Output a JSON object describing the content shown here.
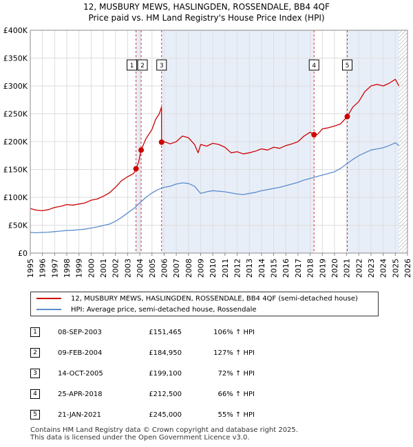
{
  "title_line1": "12, MUSBURY MEWS, HASLINGDEN, ROSSENDALE, BB4 4QF",
  "title_line2": "Price paid vs. HM Land Registry's House Price Index (HPI)",
  "colors": {
    "price_line": "#cc0000",
    "hpi_line": "#5b8ccc",
    "shade": "#e8eef8",
    "marker_line": "#cc0000",
    "grid": "#dddddd"
  },
  "chart_data": {
    "type": "line",
    "title": "Price paid vs. HM Land Registry's House Price Index (HPI)",
    "xlim": [
      1995,
      2026
    ],
    "ylim": [
      0,
      400000
    ],
    "x_ticks": [
      1995,
      1996,
      1997,
      1998,
      1999,
      2000,
      2001,
      2002,
      2003,
      2004,
      2005,
      2006,
      2007,
      2008,
      2009,
      2010,
      2011,
      2012,
      2013,
      2014,
      2015,
      2016,
      2017,
      2018,
      2019,
      2020,
      2021,
      2022,
      2023,
      2024,
      2025,
      2026
    ],
    "y_ticks": [
      {
        "value": 0,
        "label": "£0"
      },
      {
        "value": 50000,
        "label": "£50K"
      },
      {
        "value": 100000,
        "label": "£100K"
      },
      {
        "value": 150000,
        "label": "£150K"
      },
      {
        "value": 200000,
        "label": "£200K"
      },
      {
        "value": 250000,
        "label": "£250K"
      },
      {
        "value": 300000,
        "label": "£300K"
      },
      {
        "value": 350000,
        "label": "£350K"
      },
      {
        "value": 400000,
        "label": "£400K"
      }
    ],
    "shaded_ranges": [
      [
        2003.69,
        2004.11
      ],
      [
        2005.79,
        2018.32
      ],
      [
        2021.05,
        2025.3
      ]
    ],
    "hatch_from": 2025.3,
    "series": [
      {
        "name": "12, MUSBURY MEWS, HASLINGDEN, ROSSENDALE, BB4 4QF (semi-detached house)",
        "color": "#cc0000",
        "x": [
          1995.0,
          1995.5,
          1996.0,
          1996.5,
          1997.0,
          1997.5,
          1998.0,
          1998.5,
          1999.0,
          1999.5,
          2000.0,
          2000.5,
          2001.0,
          2001.5,
          2002.0,
          2002.5,
          2003.0,
          2003.5,
          2003.69,
          2003.9,
          2004.11,
          2004.5,
          2005.0,
          2005.3,
          2005.6,
          2005.78,
          2005.79,
          2006.0,
          2006.5,
          2007.0,
          2007.5,
          2008.0,
          2008.5,
          2008.8,
          2009.0,
          2009.5,
          2010.0,
          2010.5,
          2011.0,
          2011.5,
          2012.0,
          2012.5,
          2013.0,
          2013.5,
          2014.0,
          2014.5,
          2015.0,
          2015.5,
          2016.0,
          2016.5,
          2017.0,
          2017.5,
          2018.0,
          2018.32,
          2018.6,
          2019.0,
          2019.5,
          2020.0,
          2020.5,
          2021.05,
          2021.5,
          2022.0,
          2022.5,
          2023.0,
          2023.5,
          2024.0,
          2024.5,
          2025.0,
          2025.3
        ],
        "values": [
          80000,
          77000,
          76000,
          78000,
          82000,
          84000,
          87000,
          86000,
          88000,
          90000,
          95000,
          97000,
          102000,
          108000,
          118000,
          130000,
          137000,
          143000,
          151465,
          163000,
          184950,
          205000,
          222000,
          240000,
          250000,
          262000,
          199100,
          200000,
          196000,
          200000,
          210000,
          207000,
          195000,
          180000,
          195000,
          192000,
          197000,
          195000,
          190000,
          180000,
          182000,
          178000,
          180000,
          183000,
          187000,
          185000,
          190000,
          188000,
          193000,
          196000,
          200000,
          210000,
          217000,
          212500,
          213000,
          223000,
          225000,
          228000,
          232000,
          245000,
          262000,
          272000,
          290000,
          300000,
          303000,
          300000,
          305000,
          312000,
          300000
        ]
      },
      {
        "name": "HPI: Average price, semi-detached house, Rossendale",
        "color": "#5b8ccc",
        "x": [
          1995.0,
          1995.5,
          1996.0,
          1996.5,
          1997.0,
          1997.5,
          1998.0,
          1998.5,
          1999.0,
          1999.5,
          2000.0,
          2000.5,
          2001.0,
          2001.5,
          2002.0,
          2002.5,
          2003.0,
          2003.5,
          2004.0,
          2004.5,
          2005.0,
          2005.5,
          2006.0,
          2006.5,
          2007.0,
          2007.5,
          2008.0,
          2008.5,
          2009.0,
          2009.5,
          2010.0,
          2010.5,
          2011.0,
          2011.5,
          2012.0,
          2012.5,
          2013.0,
          2013.5,
          2014.0,
          2014.5,
          2015.0,
          2015.5,
          2016.0,
          2016.5,
          2017.0,
          2017.5,
          2018.0,
          2018.5,
          2019.0,
          2019.5,
          2020.0,
          2020.5,
          2021.0,
          2021.5,
          2022.0,
          2022.5,
          2023.0,
          2023.5,
          2024.0,
          2024.5,
          2025.0,
          2025.3
        ],
        "values": [
          37000,
          36500,
          37000,
          37500,
          38500,
          39500,
          40500,
          41000,
          42000,
          43000,
          45000,
          47000,
          49500,
          52000,
          57000,
          64000,
          72000,
          80000,
          90000,
          100000,
          108000,
          114000,
          118000,
          120000,
          124000,
          126000,
          125000,
          120000,
          107000,
          110000,
          112000,
          111000,
          110000,
          108000,
          106000,
          105000,
          107000,
          109000,
          112000,
          114000,
          116000,
          118000,
          121000,
          124000,
          127000,
          131000,
          134000,
          137000,
          140000,
          143000,
          146000,
          152000,
          160000,
          168000,
          175000,
          180000,
          185000,
          187000,
          189000,
          193000,
          198000,
          193000
        ]
      }
    ],
    "sales_markers": [
      {
        "label": "1",
        "x": 2003.69,
        "value": 151465
      },
      {
        "label": "2",
        "x": 2004.11,
        "value": 184950
      },
      {
        "label": "3",
        "x": 2005.79,
        "value": 199100
      },
      {
        "label": "4",
        "x": 2018.32,
        "value": 212500
      },
      {
        "label": "5",
        "x": 2021.05,
        "value": 245000
      }
    ]
  },
  "legend": {
    "red_label": "12, MUSBURY MEWS, HASLINGDEN, ROSSENDALE, BB4 4QF (semi-detached house)",
    "blue_label": "HPI: Average price, semi-detached house, Rossendale"
  },
  "sales": [
    {
      "num": "1",
      "date": "08-SEP-2003",
      "price": "£151,465",
      "hpi": "106% ↑ HPI"
    },
    {
      "num": "2",
      "date": "09-FEB-2004",
      "price": "£184,950",
      "hpi": "127% ↑ HPI"
    },
    {
      "num": "3",
      "date": "14-OCT-2005",
      "price": "£199,100",
      "hpi": "72% ↑ HPI"
    },
    {
      "num": "4",
      "date": "25-APR-2018",
      "price": "£212,500",
      "hpi": "66% ↑ HPI"
    },
    {
      "num": "5",
      "date": "21-JAN-2021",
      "price": "£245,000",
      "hpi": "55% ↑ HPI"
    }
  ],
  "footer": {
    "line1": "Contains HM Land Registry data © Crown copyright and database right 2025.",
    "line2": "This data is licensed under the Open Government Licence v3.0."
  }
}
